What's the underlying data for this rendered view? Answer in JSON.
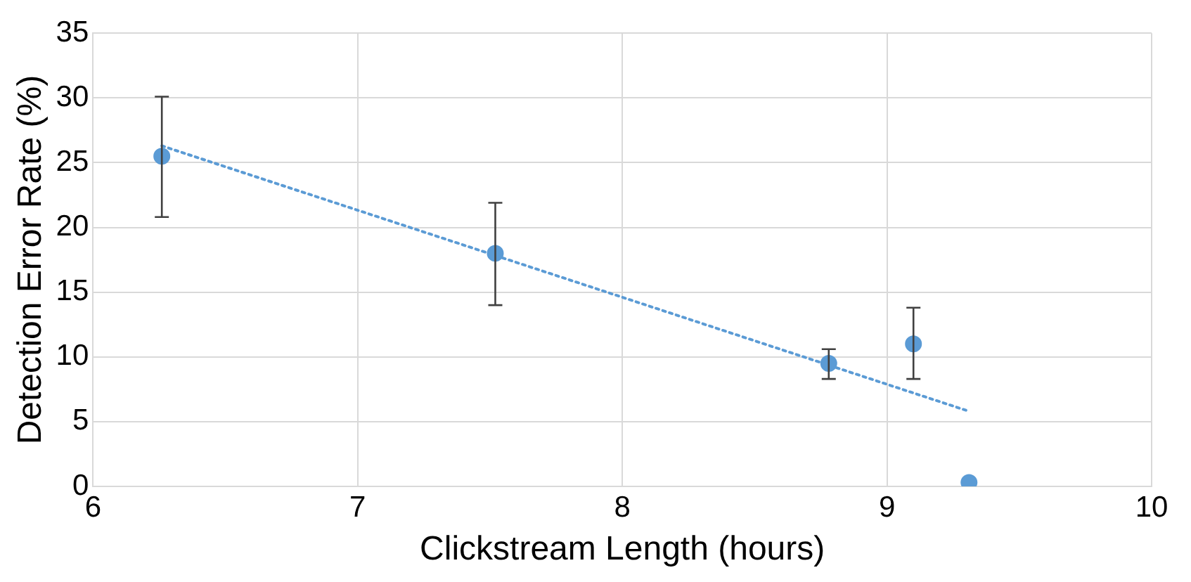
{
  "chart_data": {
    "type": "scatter",
    "xlabel": "Clickstream Length (hours)",
    "ylabel": "Detection Error Rate (%)",
    "xlim": [
      6,
      10
    ],
    "xticks": [
      6,
      7,
      8,
      9,
      10
    ],
    "ylim": [
      0,
      35
    ],
    "yticks": [
      0,
      5,
      10,
      15,
      20,
      25,
      30,
      35
    ],
    "grid": true,
    "marker": "circle",
    "series": [
      {
        "color": "#5b9bd5",
        "x": [
          6.26,
          7.52,
          8.78,
          9.1,
          9.31
        ],
        "values": [
          25.5,
          18,
          9.5,
          11,
          0.3
        ],
        "errors": [
          [
            20.8,
            30.1
          ],
          [
            14,
            21.9
          ],
          [
            8.3,
            10.6
          ],
          [
            8.3,
            13.8
          ],
          null
        ]
      },
      {
        "type": "line",
        "color": "#5b9bd5",
        "line_style": "dotted",
        "marker": "none",
        "x": [
          6.26,
          9.31
        ],
        "values": [
          26.3,
          5.8
        ]
      }
    ]
  }
}
